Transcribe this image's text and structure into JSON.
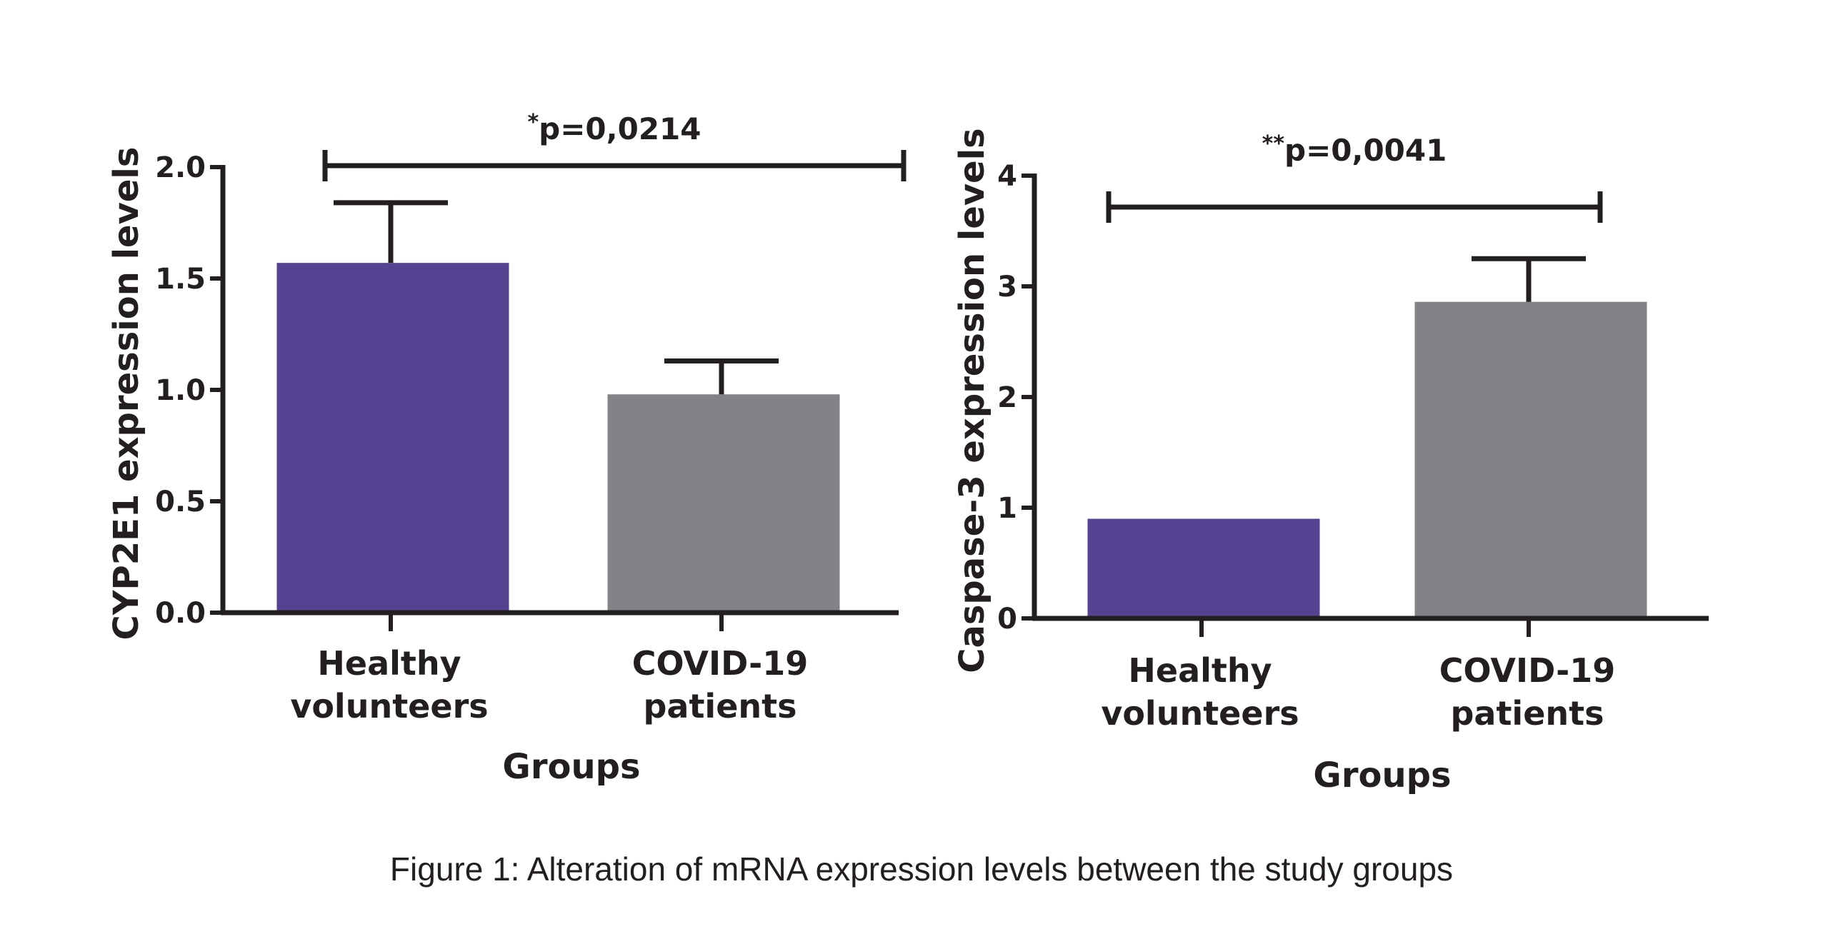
{
  "caption": "Figure 1: Alteration of mRNA expression levels between the study groups",
  "colors": {
    "healthy": "#554391",
    "covid": "#828386",
    "ink": "#231f20"
  },
  "chart_data": [
    {
      "type": "bar",
      "title": "",
      "categories": [
        "Healthy volunteers",
        "COVID-19 patients"
      ],
      "category_lines": [
        [
          "Healthy",
          "volunteers"
        ],
        [
          "COVID-19",
          "patients"
        ]
      ],
      "values": [
        1.57,
        0.98
      ],
      "error_upper": [
        1.84,
        1.13
      ],
      "xlabel": "Groups",
      "ylabel": "CYP2E1 expression levels",
      "ylim": [
        0,
        2.0
      ],
      "yticks": [
        0.0,
        0.5,
        1.0,
        1.5,
        2.0
      ],
      "ytick_labels": [
        "0.0",
        "0.5",
        "1.0",
        "1.5",
        "2.0"
      ],
      "significance": {
        "stars": "*",
        "text": "p=0,0214"
      },
      "grid": false
    },
    {
      "type": "bar",
      "title": "",
      "categories": [
        "Healthy volunteers",
        "COVID-19 patients"
      ],
      "category_lines": [
        [
          "Healthy",
          "volunteers"
        ],
        [
          "COVID-19",
          "patients"
        ]
      ],
      "values": [
        0.9,
        2.86
      ],
      "error_upper": [
        null,
        3.25
      ],
      "xlabel": "Groups",
      "ylabel": "Caspase-3 expression levels",
      "ylim": [
        0,
        4
      ],
      "yticks": [
        0,
        1,
        2,
        3,
        4
      ],
      "ytick_labels": [
        "0",
        "1",
        "2",
        "3",
        "4"
      ],
      "significance": {
        "stars": "**",
        "text": "p=0,0041"
      },
      "grid": false
    }
  ]
}
